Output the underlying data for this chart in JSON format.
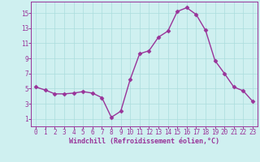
{
  "x": [
    0,
    1,
    2,
    3,
    4,
    5,
    6,
    7,
    8,
    9,
    10,
    11,
    12,
    13,
    14,
    15,
    16,
    17,
    18,
    19,
    20,
    21,
    22,
    23
  ],
  "y": [
    5.2,
    4.8,
    4.3,
    4.3,
    4.4,
    4.6,
    4.4,
    3.8,
    1.2,
    2.0,
    6.2,
    9.6,
    10.0,
    11.8,
    12.6,
    15.2,
    15.7,
    14.8,
    12.7,
    8.7,
    7.0,
    5.2,
    4.7,
    3.3
  ],
  "line_color": "#993399",
  "marker": "D",
  "marker_size": 2.5,
  "linewidth": 1.0,
  "background_color": "#cff0f0",
  "grid_color": "#aadddd",
  "xlabel": "Windchill (Refroidissement éolien,°C)",
  "xlim": [
    -0.5,
    23.5
  ],
  "ylim": [
    0,
    16.5
  ],
  "yticks": [
    1,
    3,
    5,
    7,
    9,
    11,
    13,
    15
  ],
  "xticks": [
    0,
    1,
    2,
    3,
    4,
    5,
    6,
    7,
    8,
    9,
    10,
    11,
    12,
    13,
    14,
    15,
    16,
    17,
    18,
    19,
    20,
    21,
    22,
    23
  ],
  "tick_fontsize": 5.5,
  "xlabel_fontsize": 6.0,
  "tick_color": "#993399",
  "label_color": "#993399",
  "spine_color": "#993399"
}
